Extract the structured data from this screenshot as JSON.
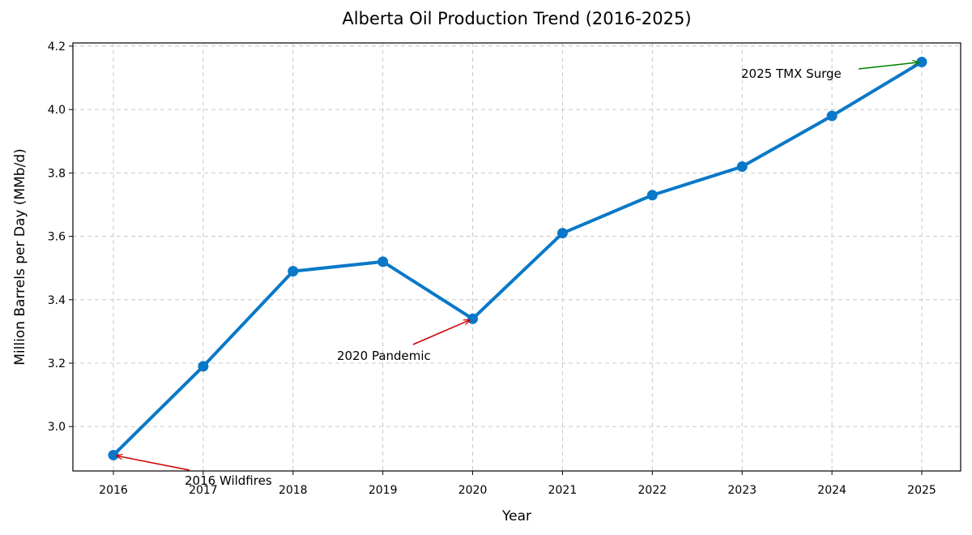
{
  "chart_data": {
    "type": "line",
    "title": "Alberta Oil Production Trend (2016-2025)",
    "xlabel": "Year",
    "ylabel": "Million Barrels per Day (MMb/d)",
    "x": [
      2016,
      2017,
      2018,
      2019,
      2020,
      2021,
      2022,
      2023,
      2024,
      2025
    ],
    "y": [
      2.91,
      3.19,
      3.49,
      3.52,
      3.34,
      3.61,
      3.73,
      3.82,
      3.98,
      4.15
    ],
    "ylim": [
      2.86,
      4.21
    ],
    "yticks": [
      "3.0",
      "3.2",
      "3.4",
      "3.6",
      "3.8",
      "4.0",
      "4.2"
    ],
    "xticks": [
      "2016",
      "2017",
      "2018",
      "2019",
      "2020",
      "2021",
      "2022",
      "2023",
      "2024",
      "2025"
    ],
    "grid": true,
    "line_color": "#0a78c8",
    "annotations": [
      {
        "text": "2016 Wildfires",
        "x": 2016,
        "y": 2.91,
        "arrow_color": "#cc0000"
      },
      {
        "text": "2020 Pandemic",
        "x": 2020,
        "y": 3.34,
        "arrow_color": "#cc0000"
      },
      {
        "text": "2025 TMX Surge",
        "x": 2025,
        "y": 4.15,
        "arrow_color": "#008000"
      }
    ]
  }
}
